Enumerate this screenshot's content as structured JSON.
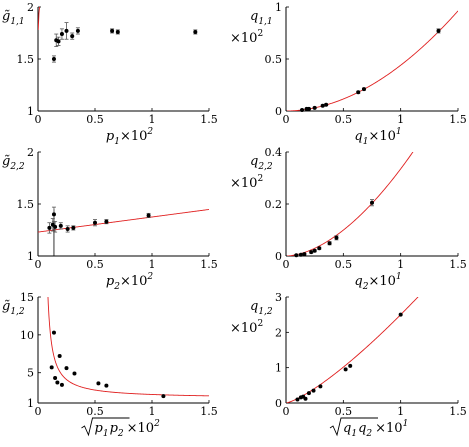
{
  "chart_data": [
    {
      "type": "scatter",
      "id": "g11",
      "ylabel": {
        "main": "g̃",
        "sub": "1,1",
        "pre": ""
      },
      "xlabel": {
        "main": "p",
        "sub": "1",
        "suffix": "×10",
        "sup": "2",
        "sqrt": false
      },
      "xlim": [
        0,
        1.5
      ],
      "ylim": [
        1,
        2
      ],
      "xticks": [
        0,
        0.5,
        1,
        1.5
      ],
      "yticks": [
        1,
        1.5,
        2
      ],
      "xtick_labels": [
        "0",
        "0.5",
        "1",
        "1.5"
      ],
      "ytick_labels": [
        "1",
        "1.5",
        "2"
      ],
      "points": [
        {
          "x": 0.14,
          "y": 1.5,
          "err": 0.03
        },
        {
          "x": 0.16,
          "y": 1.68,
          "err": 0.06
        },
        {
          "x": 0.18,
          "y": 1.67,
          "err": 0.04
        },
        {
          "x": 0.21,
          "y": 1.74,
          "err": 0.05
        },
        {
          "x": 0.25,
          "y": 1.77,
          "err": 0.08
        },
        {
          "x": 0.3,
          "y": 1.72,
          "err": 0.03
        },
        {
          "x": 0.35,
          "y": 1.77,
          "err": 0.03
        },
        {
          "x": 0.65,
          "y": 1.77,
          "err": 0.02
        },
        {
          "x": 0.7,
          "y": 1.76,
          "err": 0.02
        },
        {
          "x": 1.38,
          "y": 1.76,
          "err": 0.02
        }
      ],
      "fit": {
        "kind": "power",
        "a": 1.75,
        "b": 0.13,
        "c": 0,
        "d": 1.0,
        "x0": 0.002
      }
    },
    {
      "type": "scatter",
      "id": "q11",
      "ylabel": {
        "main": "q",
        "sub": "1,1",
        "pre": "×10",
        "pre_sup": "2"
      },
      "xlabel": {
        "main": "q",
        "sub": "1",
        "suffix": "×10",
        "sup": "1",
        "sqrt": false
      },
      "xlim": [
        0,
        1.5
      ],
      "ylim": [
        0,
        1
      ],
      "xticks": [
        0,
        0.5,
        1,
        1.5
      ],
      "yticks": [
        0,
        0.5,
        1
      ],
      "xtick_labels": [
        "0",
        "0.5",
        "1",
        "1.5"
      ],
      "ytick_labels": [
        "0",
        "0.5",
        "1"
      ],
      "points": [
        {
          "x": 0.14,
          "y": 0.01,
          "err": 0.005
        },
        {
          "x": 0.18,
          "y": 0.02,
          "err": 0.005
        },
        {
          "x": 0.2,
          "y": 0.02,
          "err": 0.005
        },
        {
          "x": 0.25,
          "y": 0.03,
          "err": 0.006
        },
        {
          "x": 0.32,
          "y": 0.05,
          "err": 0.008
        },
        {
          "x": 0.35,
          "y": 0.06,
          "err": 0.008
        },
        {
          "x": 0.63,
          "y": 0.18,
          "err": 0.01
        },
        {
          "x": 0.68,
          "y": 0.21,
          "err": 0.01
        },
        {
          "x": 1.33,
          "y": 0.77,
          "err": 0.02
        }
      ],
      "fit": {
        "kind": "power",
        "a": 0.44,
        "b": 1.93,
        "c": 0,
        "d": 0,
        "x0": 0.01
      }
    },
    {
      "type": "scatter",
      "id": "g22",
      "ylabel": {
        "main": "g̃",
        "sub": "2,2",
        "pre": ""
      },
      "xlabel": {
        "main": "p",
        "sub": "2",
        "suffix": "×10",
        "sup": "2",
        "sqrt": false
      },
      "xlim": [
        0,
        1.5
      ],
      "ylim": [
        1,
        2
      ],
      "xticks": [
        0,
        0.5,
        1,
        1.5
      ],
      "yticks": [
        1,
        1.5,
        2
      ],
      "xtick_labels": [
        "0",
        "0.5",
        "1",
        "1.5"
      ],
      "ytick_labels": [
        "1",
        "1.5",
        "2"
      ],
      "points": [
        {
          "x": 0.1,
          "y": 1.27,
          "err": 0.05
        },
        {
          "x": 0.13,
          "y": 1.3,
          "err": 0.06
        },
        {
          "x": 0.14,
          "y": 1.4,
          "err": 0.07
        },
        {
          "x": 0.15,
          "y": 1.28,
          "err": 0.05
        },
        {
          "x": 0.2,
          "y": 1.29,
          "err": 0.03
        },
        {
          "x": 0.26,
          "y": 1.26,
          "err": 0.03
        },
        {
          "x": 0.31,
          "y": 1.27,
          "err": 0.02
        },
        {
          "x": 0.5,
          "y": 1.32,
          "err": 0.03
        },
        {
          "x": 0.6,
          "y": 1.33,
          "err": 0.02
        },
        {
          "x": 0.97,
          "y": 1.39,
          "err": 0.02
        }
      ],
      "fit": {
        "kind": "linear",
        "a": 1.23,
        "b": 0.145,
        "c": 0,
        "d": 0,
        "x0": 0.0
      },
      "vline_x": 0.14
    },
    {
      "type": "scatter",
      "id": "q22",
      "ylabel": {
        "main": "q",
        "sub": "2,2",
        "pre": "×10",
        "pre_sup": "2"
      },
      "xlabel": {
        "main": "q",
        "sub": "2",
        "suffix": "×10",
        "sup": "1",
        "sqrt": false
      },
      "xlim": [
        0,
        1.5
      ],
      "ylim": [
        0,
        0.4
      ],
      "xticks": [
        0,
        0.5,
        1,
        1.5
      ],
      "yticks": [
        0,
        0.2,
        0.4
      ],
      "xtick_labels": [
        "0",
        "0.5",
        "1",
        "1.5"
      ],
      "ytick_labels": [
        "0",
        "0.2",
        "0.4"
      ],
      "points": [
        {
          "x": 0.09,
          "y": 0.003,
          "err": 0.003
        },
        {
          "x": 0.13,
          "y": 0.005,
          "err": 0.003
        },
        {
          "x": 0.16,
          "y": 0.007,
          "err": 0.003
        },
        {
          "x": 0.22,
          "y": 0.015,
          "err": 0.004
        },
        {
          "x": 0.25,
          "y": 0.02,
          "err": 0.004
        },
        {
          "x": 0.29,
          "y": 0.03,
          "err": 0.004
        },
        {
          "x": 0.38,
          "y": 0.049,
          "err": 0.006
        },
        {
          "x": 0.44,
          "y": 0.07,
          "err": 0.008
        },
        {
          "x": 0.75,
          "y": 0.205,
          "err": 0.012
        }
      ],
      "fit": {
        "kind": "power",
        "a": 0.335,
        "b": 1.75,
        "c": 0,
        "d": 0,
        "x0": 0.01
      }
    },
    {
      "type": "scatter",
      "id": "g12",
      "ylabel": {
        "main": "g̃",
        "sub": "1,2",
        "pre": ""
      },
      "xlabel": {
        "main": "p",
        "sub": "1",
        "main2": "p",
        "sub2": "2",
        "suffix": "×10",
        "sup": "2",
        "sqrt": true
      },
      "xlim": [
        0,
        1.5
      ],
      "ylim": [
        1,
        15
      ],
      "xticks": [
        0,
        0.5,
        1,
        1.5
      ],
      "yticks": [
        1,
        5,
        10,
        15
      ],
      "xtick_labels": [
        "0",
        "0.5",
        "1",
        "1.5"
      ],
      "ytick_labels": [
        "1",
        "5",
        "10",
        "15"
      ],
      "points": [
        {
          "x": 0.12,
          "y": 5.7,
          "err": 0
        },
        {
          "x": 0.14,
          "y": 10.3,
          "err": 0
        },
        {
          "x": 0.15,
          "y": 4.3,
          "err": 0
        },
        {
          "x": 0.17,
          "y": 3.7,
          "err": 0
        },
        {
          "x": 0.19,
          "y": 7.2,
          "err": 0
        },
        {
          "x": 0.21,
          "y": 3.4,
          "err": 0
        },
        {
          "x": 0.25,
          "y": 5.6,
          "err": 0
        },
        {
          "x": 0.32,
          "y": 4.9,
          "err": 0
        },
        {
          "x": 0.53,
          "y": 3.6,
          "err": 0
        },
        {
          "x": 0.6,
          "y": 3.3,
          "err": 0
        },
        {
          "x": 1.1,
          "y": 1.9,
          "err": 0
        }
      ],
      "fit": {
        "kind": "inverse",
        "a": 1.6,
        "b": 0.5,
        "c": 0.05,
        "d": 0,
        "x0": 0.06
      }
    },
    {
      "type": "scatter",
      "id": "q12",
      "ylabel": {
        "main": "q",
        "sub": "1,2",
        "pre": "×10",
        "pre_sup": "2"
      },
      "xlabel": {
        "main": "q",
        "sub": "1",
        "main2": "q",
        "sub2": "2",
        "suffix": "×10",
        "sup": "1",
        "sqrt": true
      },
      "xlim": [
        0,
        1.5
      ],
      "ylim": [
        0,
        3
      ],
      "xticks": [
        0,
        0.5,
        1,
        1.5
      ],
      "yticks": [
        0,
        1,
        2,
        3
      ],
      "xtick_labels": [
        "0",
        "0.5",
        "1",
        "1.5"
      ],
      "ytick_labels": [
        "0",
        "1",
        "2",
        "3"
      ],
      "points": [
        {
          "x": 0.1,
          "y": 0.1,
          "err": 0
        },
        {
          "x": 0.13,
          "y": 0.16,
          "err": 0
        },
        {
          "x": 0.15,
          "y": 0.18,
          "err": 0
        },
        {
          "x": 0.17,
          "y": 0.12,
          "err": 0
        },
        {
          "x": 0.2,
          "y": 0.28,
          "err": 0
        },
        {
          "x": 0.24,
          "y": 0.35,
          "err": 0
        },
        {
          "x": 0.3,
          "y": 0.47,
          "err": 0
        },
        {
          "x": 0.52,
          "y": 0.95,
          "err": 0
        },
        {
          "x": 0.56,
          "y": 1.05,
          "err": 0
        },
        {
          "x": 1.0,
          "y": 2.5,
          "err": 0
        }
      ],
      "fit": {
        "kind": "power",
        "a": 2.5,
        "b": 1.3,
        "c": 0,
        "d": 0,
        "x0": 0.005
      }
    }
  ]
}
